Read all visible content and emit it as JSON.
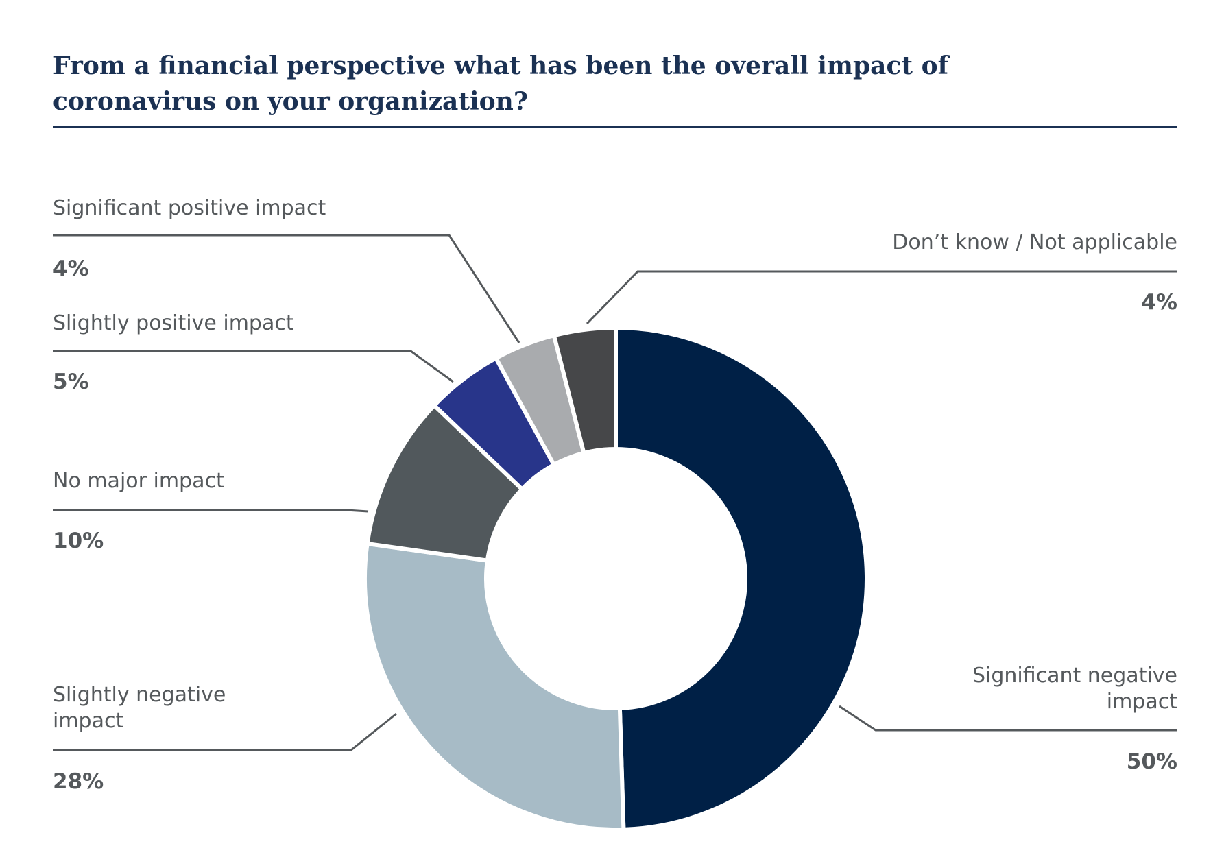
{
  "chart_data": {
    "type": "pie",
    "subtype": "donut",
    "title_lines": [
      "From a financial perspective  what has been the overall impact of",
      "coronavirus on your organization?"
    ],
    "slices": [
      {
        "label": "Significant negative impact",
        "label_lines": [
          "Significant negative",
          "impact"
        ],
        "value": 50,
        "value_label": "50%",
        "color": "#002046"
      },
      {
        "label": "Slightly negative impact",
        "label_lines": [
          "Slightly negative",
          "impact"
        ],
        "value": 28,
        "value_label": "28%",
        "color": "#a7bbc6"
      },
      {
        "label": "No major impact",
        "label_lines": [
          "No major impact"
        ],
        "value": 10,
        "value_label": "10%",
        "color": "#51585c"
      },
      {
        "label": "Slightly positive impact",
        "label_lines": [
          "Slightly positive impact"
        ],
        "value": 5,
        "value_label": "5%",
        "color": "#28358a"
      },
      {
        "label": "Significant positive impact",
        "label_lines": [
          "Significant positive impact"
        ],
        "value": 4,
        "value_label": "4%",
        "color": "#a9abae"
      },
      {
        "label": "Don’t know / Not applicable",
        "label_lines": [
          "Don’t know / Not applicable"
        ],
        "value": 4,
        "value_label": "4%",
        "color": "#464749"
      }
    ],
    "start": "top",
    "direction": "clockwise"
  }
}
